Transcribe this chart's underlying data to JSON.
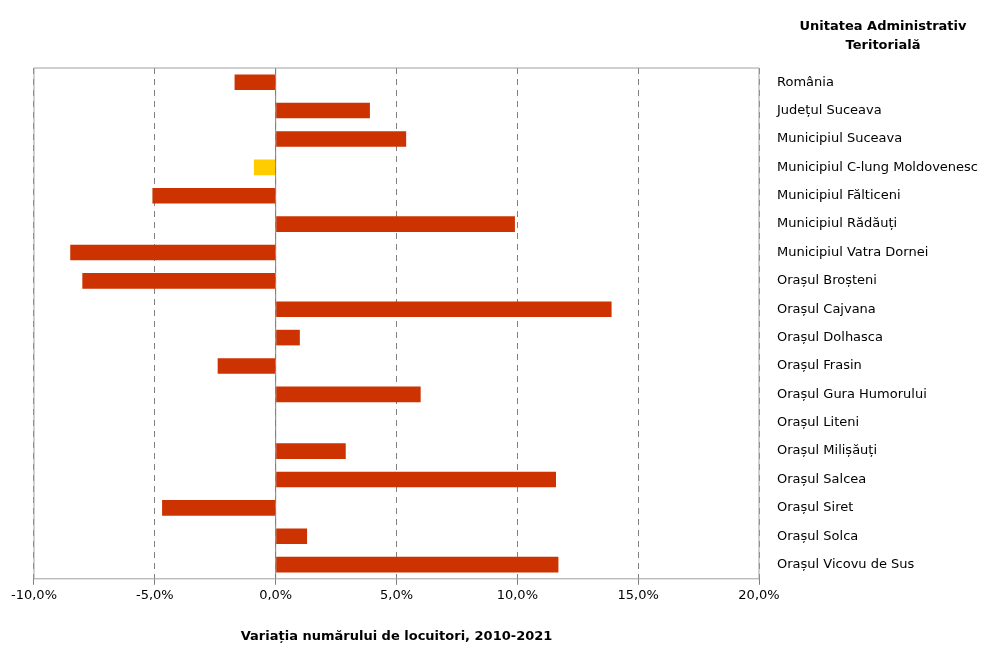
{
  "chart_data": {
    "type": "bar",
    "orientation": "horizontal",
    "xlabel": "Variația numărului de locuitori, 2010-2021",
    "ylabel": "Unitatea Administrativ Teritorială",
    "categories": [
      "România",
      "Județul Suceava",
      "Municipiul Suceava",
      "Municipiul C-lung Moldovenesc",
      "Municipiul Fălticeni",
      "Municipiul Rădăuți",
      "Municipiul Vatra Dornei",
      "Orașul Broșteni",
      "Orașul Cajvana",
      "Orașul Dolhasca",
      "Orașul Frasin",
      "Orașul Gura Humorului",
      "Orașul Liteni",
      "Orașul Milișăuți",
      "Orașul Salcea",
      "Orașul Siret",
      "Orașul Solca",
      "Orașul Vicovu de Sus"
    ],
    "values": [
      -1.7,
      3.9,
      5.4,
      -0.9,
      -5.1,
      9.9,
      -8.5,
      -8.0,
      13.9,
      1.0,
      -2.4,
      6.0,
      0,
      2.9,
      11.6,
      -4.7,
      1.3,
      11.7
    ],
    "colors": [
      "#cc3300",
      "#cc3300",
      "#cc3300",
      "#ffcc00",
      "#cc3300",
      "#cc3300",
      "#cc3300",
      "#cc3300",
      "#cc3300",
      "#cc3300",
      "#cc3300",
      "#cc3300",
      "#cc3300",
      "#cc3300",
      "#cc3300",
      "#cc3300",
      "#cc3300",
      "#cc3300"
    ],
    "xlim": [
      -10,
      20
    ],
    "xticks": [
      {
        "value": -10,
        "label": "-10,0%"
      },
      {
        "value": -5,
        "label": "-5,0%"
      },
      {
        "value": 0,
        "label": "0,0%"
      },
      {
        "value": 5,
        "label": "5,0%"
      },
      {
        "value": 10,
        "label": "10,0%"
      },
      {
        "value": 15,
        "label": "15,0%"
      },
      {
        "value": 20,
        "label": "20,0%"
      }
    ],
    "grid": "x",
    "legend": false
  }
}
